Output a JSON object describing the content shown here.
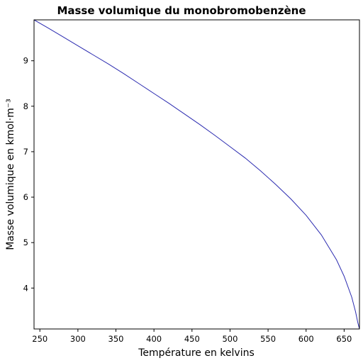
{
  "chart_data": {
    "type": "line",
    "title": "Masse volumique du monobromobenzène",
    "xlabel": "Température en kelvins",
    "ylabel": "Masse volumique en kmol·m⁻³",
    "xlim": [
      242.33,
      670.15
    ],
    "ylim": [
      3.1,
      9.9
    ],
    "xticks": [
      250,
      300,
      350,
      400,
      450,
      500,
      550,
      600,
      650
    ],
    "yticks": [
      4,
      5,
      6,
      7,
      8,
      9
    ],
    "grid": false,
    "series": [
      {
        "color": "#2b2bb0",
        "x": [
          242.33,
          260,
          280,
          300,
          320,
          340,
          360,
          380,
          400,
          420,
          440,
          460,
          480,
          500,
          520,
          540,
          560,
          580,
          600,
          620,
          640,
          650,
          660,
          665,
          668,
          670.15
        ],
        "y": [
          9.9,
          9.73,
          9.53,
          9.33,
          9.13,
          8.93,
          8.72,
          8.5,
          8.28,
          8.06,
          7.83,
          7.6,
          7.36,
          7.11,
          6.86,
          6.58,
          6.28,
          5.96,
          5.6,
          5.17,
          4.62,
          4.26,
          3.8,
          3.48,
          3.24,
          3.1
        ]
      }
    ]
  }
}
